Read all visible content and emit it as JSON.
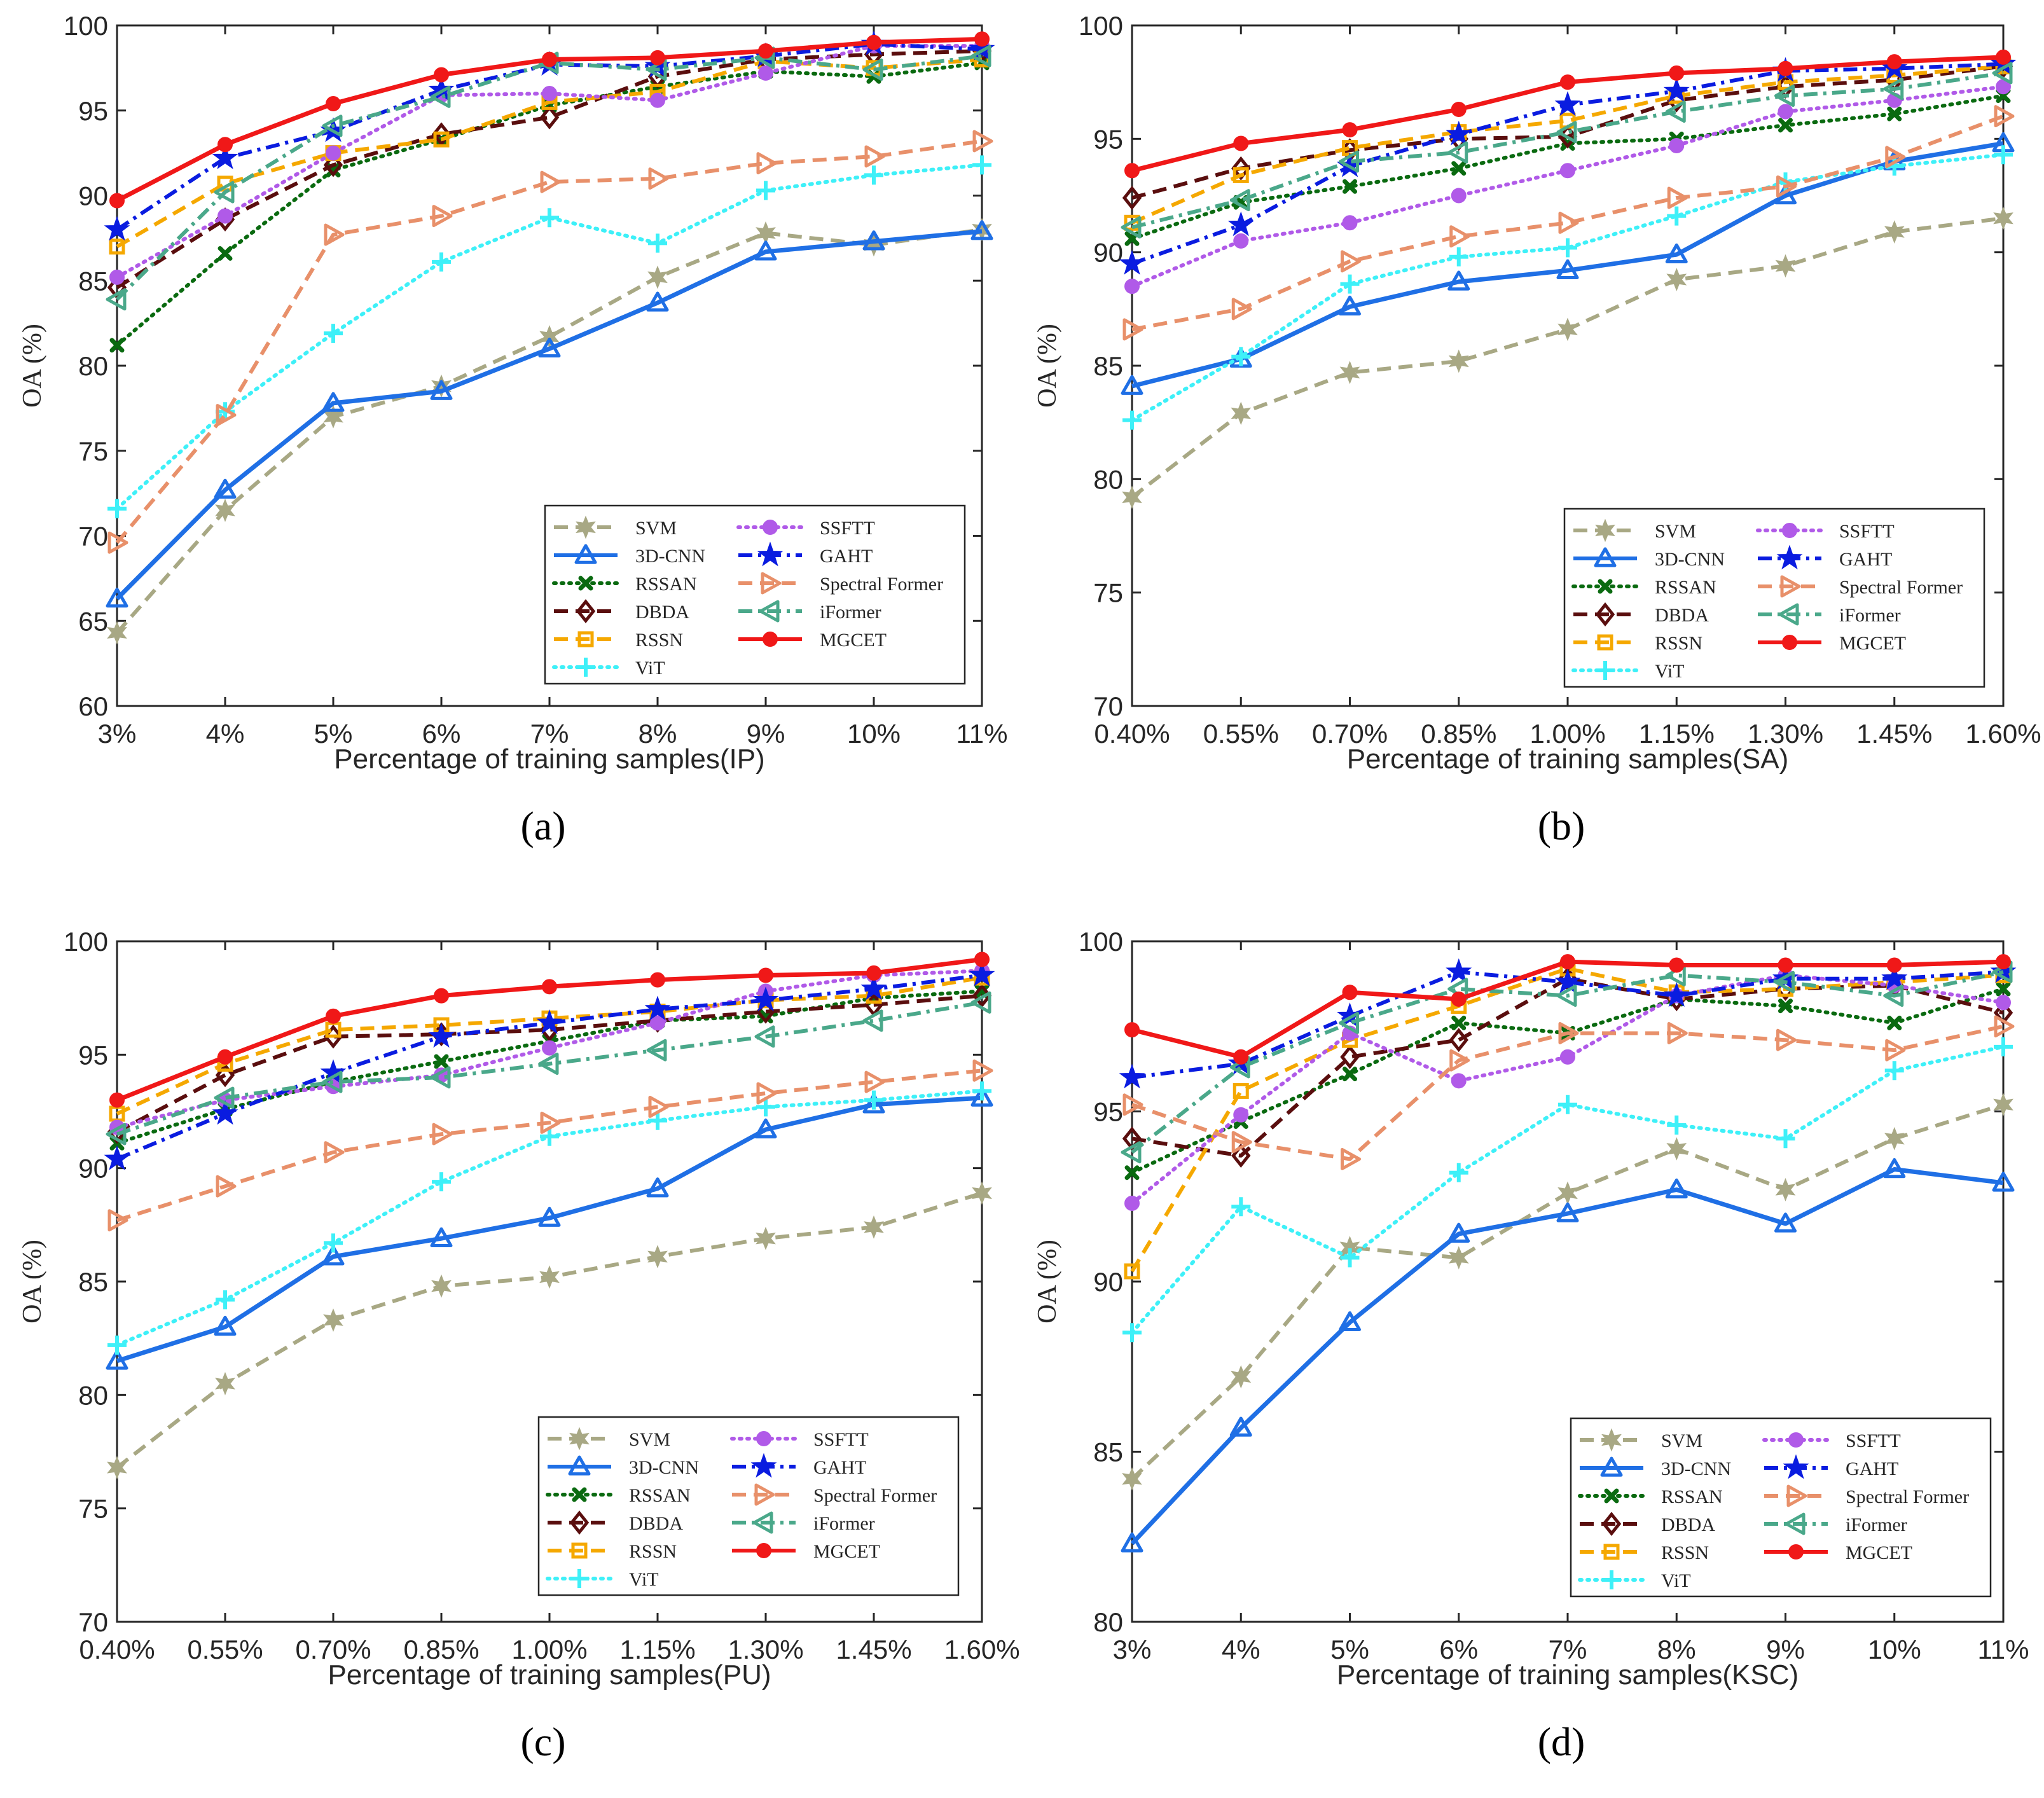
{
  "series_styles": {
    "SVM": {
      "color": "#a8a884",
      "dash": "dash",
      "marker": "hexstar"
    },
    "3D-CNN": {
      "color": "#1f6fe5",
      "dash": "solid",
      "marker": "triangle"
    },
    "RSSAN": {
      "color": "#0a6a10",
      "dash": "dot",
      "marker": "x"
    },
    "DBDA": {
      "color": "#5a0e0e",
      "dash": "dash",
      "marker": "diamond"
    },
    "RSSN": {
      "color": "#f5a800",
      "dash": "dash",
      "marker": "square"
    },
    "ViT": {
      "color": "#3ef0f8",
      "dash": "dot",
      "marker": "plus"
    },
    "SSFTT": {
      "color": "#b05ae8",
      "dash": "dot",
      "marker": "circle"
    },
    "GAHT": {
      "color": "#0a1ce0",
      "dash": "dashdot",
      "marker": "star"
    },
    "Spectral Former": {
      "color": "#e8906a",
      "dash": "dash",
      "marker": "tri-right"
    },
    "iFormer": {
      "color": "#4aa88a",
      "dash": "dashdot",
      "marker": "tri-left"
    },
    "MGCET": {
      "color": "#f01818",
      "dash": "solid",
      "marker": "circle"
    }
  },
  "chart_data": [
    {
      "panel_label": "(a)",
      "type": "line",
      "xlabel": "Percentage of training samples(IP)",
      "ylabel": "OA (%)",
      "categories": [
        "3%",
        "4%",
        "5%",
        "6%",
        "7%",
        "8%",
        "9%",
        "10%",
        "11%"
      ],
      "ylim": [
        60,
        100
      ],
      "yticks": [
        "60",
        "65",
        "70",
        "75",
        "80",
        "85",
        "90",
        "95",
        "100"
      ],
      "legend_position": "bottom-right",
      "series": [
        {
          "name": "SVM",
          "values": [
            64.3,
            71.5,
            77.0,
            78.8,
            81.7,
            85.2,
            87.8,
            87.1,
            88.0
          ]
        },
        {
          "name": "3D-CNN",
          "values": [
            66.3,
            72.7,
            77.8,
            78.5,
            81.0,
            83.7,
            86.7,
            87.3,
            87.9
          ]
        },
        {
          "name": "RSSAN",
          "values": [
            81.2,
            86.6,
            91.5,
            93.3,
            95.3,
            96.4,
            97.3,
            97.0,
            97.8
          ]
        },
        {
          "name": "DBDA",
          "values": [
            84.6,
            88.6,
            91.8,
            93.6,
            94.6,
            97.0,
            98.0,
            98.3,
            98.5
          ]
        },
        {
          "name": "RSSN",
          "values": [
            87.0,
            90.7,
            92.5,
            93.3,
            95.5,
            96.1,
            97.9,
            97.5,
            98.0
          ]
        },
        {
          "name": "ViT",
          "values": [
            71.6,
            77.3,
            81.9,
            86.1,
            88.7,
            87.2,
            90.3,
            91.2,
            91.8
          ]
        },
        {
          "name": "SSFTT",
          "values": [
            85.2,
            88.8,
            92.5,
            95.9,
            96.0,
            95.6,
            97.2,
            98.8,
            98.8
          ]
        },
        {
          "name": "GAHT",
          "values": [
            88.0,
            92.2,
            93.8,
            96.2,
            97.7,
            97.6,
            98.2,
            98.9,
            98.6
          ]
        },
        {
          "name": "Spectral Former",
          "values": [
            69.6,
            77.1,
            87.7,
            88.8,
            90.8,
            91.0,
            91.9,
            92.3,
            93.2
          ]
        },
        {
          "name": "iFormer",
          "values": [
            83.9,
            90.2,
            94.1,
            95.8,
            97.8,
            97.4,
            98.1,
            97.4,
            98.2
          ]
        },
        {
          "name": "MGCET",
          "values": [
            89.7,
            93.0,
            95.4,
            97.1,
            98.0,
            98.1,
            98.5,
            99.0,
            99.2
          ]
        }
      ]
    },
    {
      "panel_label": "(b)",
      "type": "line",
      "xlabel": "Percentage of training samples(SA)",
      "ylabel": "OA (%)",
      "categories": [
        "0.40%",
        "0.55%",
        "0.70%",
        "0.85%",
        "1.00%",
        "1.15%",
        "1.30%",
        "1.45%",
        "1.60%"
      ],
      "ylim": [
        70,
        100
      ],
      "yticks": [
        "70",
        "75",
        "80",
        "85",
        "90",
        "95",
        "100"
      ],
      "legend_position": "bottom-right",
      "series": [
        {
          "name": "SVM",
          "values": [
            79.2,
            82.9,
            84.7,
            85.2,
            86.6,
            88.8,
            89.4,
            90.9,
            91.5
          ]
        },
        {
          "name": "3D-CNN",
          "values": [
            84.1,
            85.3,
            87.6,
            88.7,
            89.2,
            89.9,
            92.5,
            94.0,
            94.8
          ]
        },
        {
          "name": "RSSAN",
          "values": [
            90.6,
            92.2,
            92.9,
            93.7,
            94.8,
            95.0,
            95.6,
            96.1,
            96.9
          ]
        },
        {
          "name": "DBDA",
          "values": [
            92.4,
            93.7,
            94.5,
            95.0,
            95.1,
            96.7,
            97.3,
            97.6,
            98.2
          ]
        },
        {
          "name": "RSSN",
          "values": [
            91.3,
            93.4,
            94.6,
            95.3,
            95.8,
            96.9,
            97.5,
            97.8,
            98.2
          ]
        },
        {
          "name": "ViT",
          "values": [
            82.6,
            85.4,
            88.6,
            89.8,
            90.2,
            91.6,
            93.1,
            93.8,
            94.3
          ]
        },
        {
          "name": "SSFTT",
          "values": [
            88.5,
            90.5,
            91.3,
            92.5,
            93.6,
            94.7,
            96.2,
            96.7,
            97.3
          ]
        },
        {
          "name": "GAHT",
          "values": [
            89.5,
            91.2,
            93.8,
            95.2,
            96.5,
            97.1,
            98.0,
            98.1,
            98.3
          ]
        },
        {
          "name": "Spectral Former",
          "values": [
            86.6,
            87.5,
            89.6,
            90.7,
            91.3,
            92.4,
            92.9,
            94.2,
            96.0
          ]
        },
        {
          "name": "iFormer",
          "values": [
            91.1,
            92.3,
            94.0,
            94.4,
            95.3,
            96.2,
            96.9,
            97.2,
            97.9
          ]
        },
        {
          "name": "MGCET",
          "values": [
            93.6,
            94.8,
            95.4,
            96.3,
            97.5,
            97.9,
            98.1,
            98.4,
            98.6
          ]
        }
      ]
    },
    {
      "panel_label": "(c)",
      "type": "line",
      "xlabel": "Percentage of training samples(PU)",
      "ylabel": "OA (%)",
      "categories": [
        "0.40%",
        "0.55%",
        "0.70%",
        "0.85%",
        "1.00%",
        "1.15%",
        "1.30%",
        "1.45%",
        "1.60%"
      ],
      "ylim": [
        70,
        100
      ],
      "yticks": [
        "70",
        "75",
        "80",
        "85",
        "90",
        "95",
        "100"
      ],
      "legend_position": "bottom-right",
      "series": [
        {
          "name": "SVM",
          "values": [
            76.8,
            80.5,
            83.3,
            84.8,
            85.2,
            86.1,
            86.9,
            87.4,
            88.9
          ]
        },
        {
          "name": "3D-CNN",
          "values": [
            81.5,
            83.0,
            86.1,
            86.9,
            87.8,
            89.1,
            91.7,
            92.8,
            93.1
          ]
        },
        {
          "name": "RSSAN",
          "values": [
            91.1,
            92.6,
            93.8,
            94.7,
            95.6,
            96.5,
            96.7,
            97.5,
            97.8
          ]
        },
        {
          "name": "DBDA",
          "values": [
            91.6,
            94.1,
            95.8,
            95.9,
            96.1,
            96.5,
            96.9,
            97.2,
            97.6
          ]
        },
        {
          "name": "RSSN",
          "values": [
            92.4,
            94.6,
            96.1,
            96.3,
            96.6,
            96.9,
            97.4,
            97.6,
            98.4
          ]
        },
        {
          "name": "ViT",
          "values": [
            82.2,
            84.2,
            86.7,
            89.4,
            91.4,
            92.1,
            92.7,
            93.0,
            93.4
          ]
        },
        {
          "name": "SSFTT",
          "values": [
            91.8,
            93.0,
            93.6,
            94.1,
            95.3,
            96.4,
            97.8,
            98.5,
            98.7
          ]
        },
        {
          "name": "GAHT",
          "values": [
            90.4,
            92.4,
            94.2,
            95.8,
            96.4,
            97.0,
            97.4,
            97.9,
            98.5
          ]
        },
        {
          "name": "Spectral Former",
          "values": [
            87.7,
            89.2,
            90.7,
            91.5,
            92.0,
            92.7,
            93.3,
            93.8,
            94.3
          ]
        },
        {
          "name": "iFormer",
          "values": [
            91.5,
            93.1,
            93.8,
            94.0,
            94.6,
            95.2,
            95.8,
            96.5,
            97.3
          ]
        },
        {
          "name": "MGCET",
          "values": [
            93.0,
            94.9,
            96.7,
            97.6,
            98.0,
            98.3,
            98.5,
            98.6,
            99.2
          ]
        }
      ]
    },
    {
      "panel_label": "(d)",
      "type": "line",
      "xlabel": "Percentage of training samples(KSC)",
      "ylabel": "OA (%)",
      "categories": [
        "3%",
        "4%",
        "5%",
        "6%",
        "7%",
        "8%",
        "9%",
        "10%",
        "11%"
      ],
      "ylim": [
        80,
        100
      ],
      "yticks": [
        "80",
        "85",
        "90",
        "95",
        "100"
      ],
      "legend_position": "bottom-right",
      "series": [
        {
          "name": "SVM",
          "values": [
            84.2,
            87.2,
            91.0,
            90.7,
            92.6,
            93.9,
            92.7,
            94.2,
            95.2
          ]
        },
        {
          "name": "3D-CNN",
          "values": [
            82.3,
            85.7,
            88.8,
            91.4,
            92.0,
            92.7,
            91.7,
            93.3,
            92.9
          ]
        },
        {
          "name": "RSSAN",
          "values": [
            93.2,
            94.7,
            96.1,
            97.6,
            97.3,
            98.3,
            98.1,
            97.6,
            98.6
          ]
        },
        {
          "name": "DBDA",
          "values": [
            94.2,
            93.7,
            96.6,
            97.1,
            98.9,
            98.3,
            98.6,
            98.7,
            97.9
          ]
        },
        {
          "name": "RSSN",
          "values": [
            90.3,
            95.6,
            97.1,
            98.1,
            99.2,
            98.5,
            98.6,
            98.8,
            99.0
          ]
        },
        {
          "name": "ViT",
          "values": [
            88.5,
            92.2,
            90.7,
            93.2,
            95.2,
            94.6,
            94.2,
            96.2,
            96.9
          ]
        },
        {
          "name": "SSFTT",
          "values": [
            92.3,
            94.9,
            97.3,
            95.9,
            96.6,
            98.4,
            99.0,
            98.7,
            98.2
          ]
        },
        {
          "name": "GAHT",
          "values": [
            96.0,
            96.4,
            97.8,
            99.1,
            98.8,
            98.4,
            98.9,
            98.9,
            99.1
          ]
        },
        {
          "name": "Spectral Former",
          "values": [
            95.2,
            94.1,
            93.6,
            96.5,
            97.3,
            97.3,
            97.1,
            96.8,
            97.5
          ]
        },
        {
          "name": "iFormer",
          "values": [
            93.8,
            96.3,
            97.6,
            98.6,
            98.4,
            99.0,
            98.8,
            98.4,
            99.1
          ]
        },
        {
          "name": "MGCET",
          "values": [
            97.4,
            96.6,
            98.5,
            98.3,
            99.4,
            99.3,
            99.3,
            99.3,
            99.4
          ]
        }
      ]
    }
  ]
}
